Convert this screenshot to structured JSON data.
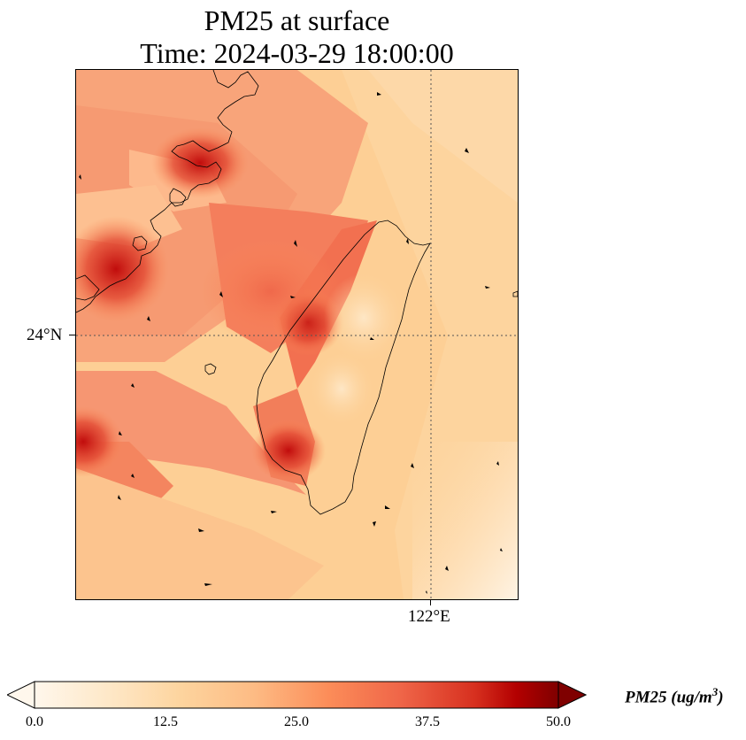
{
  "title": {
    "line1": "PM25 at surface",
    "line2": "Time: 2024-03-29 18:00:00"
  },
  "axes": {
    "lat_label": "24°N",
    "lon_label": "122°E"
  },
  "colorbar": {
    "ticks": [
      "0.0",
      "12.5",
      "25.0",
      "37.5",
      "50.0"
    ],
    "range": [
      0,
      50
    ],
    "extend": "both",
    "colormap": "OrRd",
    "colors": [
      "#fff7ec",
      "#fdd49e",
      "#fc8d59",
      "#d7301f",
      "#7f0000"
    ],
    "unit_label_prefix": "PM25 (ug/m",
    "unit_label_sup": "3",
    "unit_label_suffix": ")"
  },
  "map": {
    "features": [
      "coastline",
      "gridlines",
      "wind-arrows",
      "pm25-field"
    ],
    "gridline_style": "dotted",
    "gridline_color": "#555555"
  }
}
